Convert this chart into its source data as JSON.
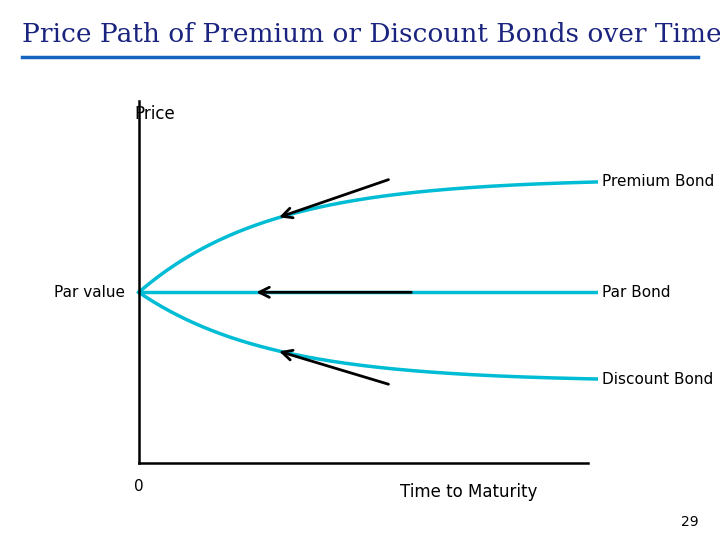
{
  "title": "Price Path of Premium or Discount Bonds over Time",
  "title_color": "#1a237e",
  "title_fontsize": 19,
  "title_underline_color": "#1565c0",
  "background_color": "#ffffff",
  "curve_color": "#00bcd4",
  "curve_linewidth": 2.5,
  "par_value": 0.5,
  "ylabel": "Price",
  "xlabel_text": "Time to Maturity",
  "par_label": "Par value",
  "premium_label": "Premium Bond",
  "par_bond_label": "Par Bond",
  "discount_label": "Discount Bond",
  "zero_label": "0",
  "page_number": "29"
}
